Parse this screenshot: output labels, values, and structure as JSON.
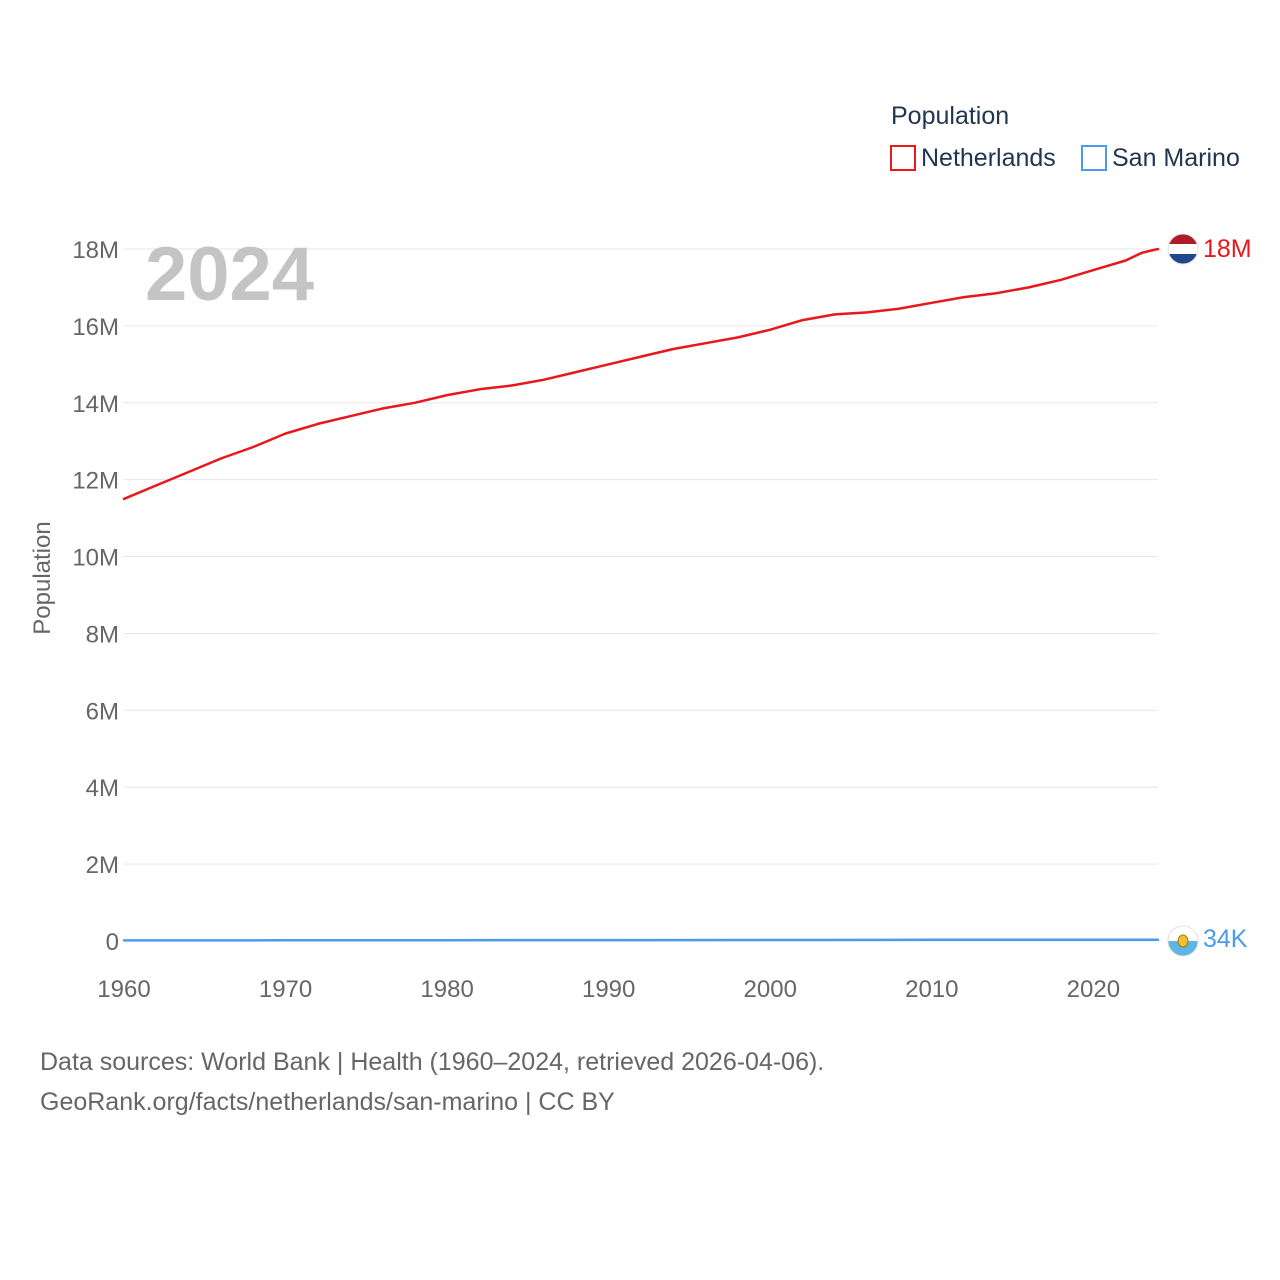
{
  "legend": {
    "title": "Population"
  },
  "year_label": "2024",
  "chart_data": {
    "type": "line",
    "title": "",
    "xlabel": "",
    "ylabel": "Population",
    "xlim": [
      1960,
      2024
    ],
    "ylim": [
      0,
      18000000
    ],
    "x_ticks": [
      {
        "value": 1960,
        "label": "1960"
      },
      {
        "value": 1970,
        "label": "1970"
      },
      {
        "value": 1980,
        "label": "1980"
      },
      {
        "value": 1990,
        "label": "1990"
      },
      {
        "value": 2000,
        "label": "2000"
      },
      {
        "value": 2010,
        "label": "2010"
      },
      {
        "value": 2020,
        "label": "2020"
      }
    ],
    "y_ticks": [
      {
        "value": 0,
        "label": "0"
      },
      {
        "value": 2000000,
        "label": "2M"
      },
      {
        "value": 4000000,
        "label": "4M"
      },
      {
        "value": 6000000,
        "label": "6M"
      },
      {
        "value": 8000000,
        "label": "8M"
      },
      {
        "value": 10000000,
        "label": "10M"
      },
      {
        "value": 12000000,
        "label": "12M"
      },
      {
        "value": 14000000,
        "label": "14M"
      },
      {
        "value": 16000000,
        "label": "16M"
      },
      {
        "value": 18000000,
        "label": "18M"
      }
    ],
    "grid": true,
    "legend_position": "top-right",
    "series": [
      {
        "name": "Netherlands",
        "color": "#e8171c",
        "end_label": "18M",
        "flag": "netherlands-flag-icon",
        "x": [
          1960,
          1962,
          1964,
          1966,
          1968,
          1970,
          1972,
          1974,
          1976,
          1978,
          1980,
          1982,
          1984,
          1986,
          1988,
          1990,
          1992,
          1994,
          1996,
          1998,
          2000,
          2002,
          2004,
          2006,
          2008,
          2010,
          2012,
          2014,
          2016,
          2018,
          2020,
          2022,
          2023,
          2024
        ],
        "values": [
          11500000,
          11850000,
          12200000,
          12550000,
          12850000,
          13200000,
          13450000,
          13650000,
          13850000,
          14000000,
          14200000,
          14350000,
          14450000,
          14600000,
          14800000,
          15000000,
          15200000,
          15400000,
          15550000,
          15700000,
          15900000,
          16150000,
          16300000,
          16350000,
          16450000,
          16600000,
          16750000,
          16850000,
          17000000,
          17200000,
          17450000,
          17700000,
          17900000,
          18000000
        ]
      },
      {
        "name": "San Marino",
        "color": "#4a9cea",
        "end_label": "34K",
        "flag": "san-marino-flag-icon",
        "x": [
          1960,
          1970,
          1980,
          1990,
          2000,
          2010,
          2020,
          2024
        ],
        "values": [
          15000,
          19000,
          21500,
          23000,
          27000,
          31500,
          34000,
          34000
        ]
      }
    ]
  },
  "footer": {
    "line1": "Data sources: World Bank | Health (1960–2024, retrieved 2026-04-06).",
    "line2": "GeoRank.org/facts/netherlands/san-marino | CC BY"
  }
}
